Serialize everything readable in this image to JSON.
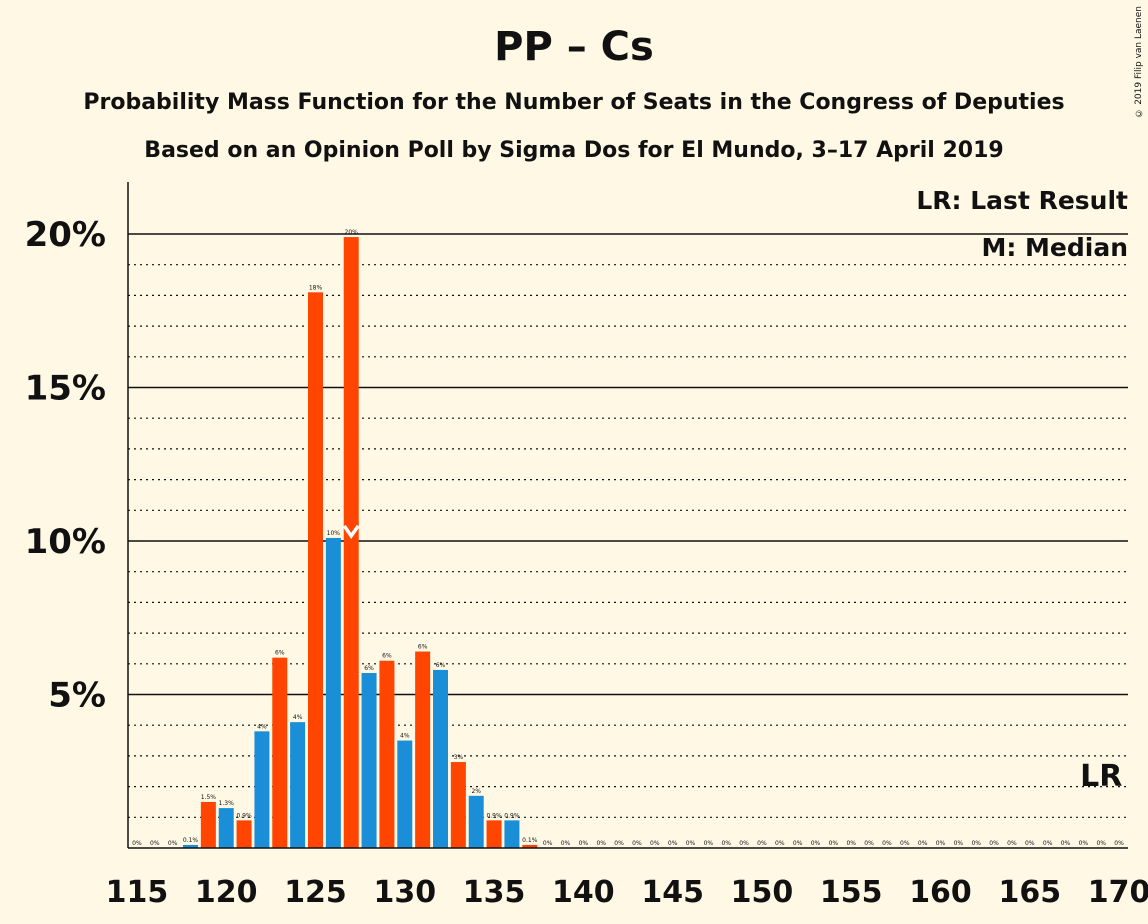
{
  "title": "PP – Cs",
  "subtitle": "Probability Mass Function for the Number of Seats in the Congress of Deputies",
  "subtitle2": "Based on an Opinion Poll by Sigma Dos for El Mundo, 3–17 April 2019",
  "copyright": "© 2019 Filip van Laenen",
  "legend": {
    "lr": "LR: Last Result",
    "m": "M: Median"
  },
  "colors": {
    "orange": "#FF4500",
    "blue": "#1A8FD8",
    "background": "#FFF8E4"
  },
  "chart_data": {
    "type": "bar",
    "xlabel": "",
    "ylabel": "",
    "ylim": [
      0,
      21.5
    ],
    "xlim": [
      115,
      170
    ],
    "y_ticks": [
      {
        "value": 5,
        "label": "5%"
      },
      {
        "value": 10,
        "label": "10%"
      },
      {
        "value": 15,
        "label": "15%"
      },
      {
        "value": 20,
        "label": "20%"
      }
    ],
    "x_ticks": [
      115,
      120,
      125,
      130,
      135,
      140,
      145,
      150,
      155,
      160,
      165,
      170
    ],
    "grid": "dotted every 1%, solid every 5%",
    "median_seat": 127,
    "last_result_seat": 169,
    "last_result_label": "LR",
    "seats": [
      {
        "x": 115,
        "value": 0,
        "label": "0%"
      },
      {
        "x": 116,
        "value": 0,
        "label": "0%"
      },
      {
        "x": 117,
        "value": 0,
        "label": "0%"
      },
      {
        "x": 118,
        "value": 0.1,
        "label": "0.1%"
      },
      {
        "x": 119,
        "value": 1.5,
        "label": "1.5%"
      },
      {
        "x": 120,
        "value": 1.3,
        "label": "1.3%"
      },
      {
        "x": 121,
        "value": 0.9,
        "label": "0.9%"
      },
      {
        "x": 122,
        "value": 3.8,
        "label": "4%"
      },
      {
        "x": 123,
        "value": 6.2,
        "label": "6%"
      },
      {
        "x": 124,
        "value": 4.1,
        "label": "4%"
      },
      {
        "x": 125,
        "value": 18.1,
        "label": "18%"
      },
      {
        "x": 126,
        "value": 10.1,
        "label": "10%"
      },
      {
        "x": 127,
        "value": 19.9,
        "label": "20%"
      },
      {
        "x": 128,
        "value": 5.7,
        "label": "6%"
      },
      {
        "x": 129,
        "value": 6.1,
        "label": "6%"
      },
      {
        "x": 130,
        "value": 3.5,
        "label": "4%"
      },
      {
        "x": 131,
        "value": 6.4,
        "label": "6%"
      },
      {
        "x": 132,
        "value": 5.8,
        "label": "6%"
      },
      {
        "x": 133,
        "value": 2.8,
        "label": "3%"
      },
      {
        "x": 134,
        "value": 1.7,
        "label": "2%"
      },
      {
        "x": 135,
        "value": 0.9,
        "label": "0.9%"
      },
      {
        "x": 136,
        "value": 0.9,
        "label": "0.9%"
      },
      {
        "x": 137,
        "value": 0.1,
        "label": "0.1%"
      },
      {
        "x": 138,
        "value": 0,
        "label": "0%"
      },
      {
        "x": 139,
        "value": 0,
        "label": "0%"
      },
      {
        "x": 140,
        "value": 0,
        "label": "0%"
      },
      {
        "x": 141,
        "value": 0,
        "label": "0%"
      },
      {
        "x": 142,
        "value": 0,
        "label": "0%"
      },
      {
        "x": 143,
        "value": 0,
        "label": "0%"
      },
      {
        "x": 144,
        "value": 0,
        "label": "0%"
      },
      {
        "x": 145,
        "value": 0,
        "label": "0%"
      },
      {
        "x": 146,
        "value": 0,
        "label": "0%"
      },
      {
        "x": 147,
        "value": 0,
        "label": "0%"
      },
      {
        "x": 148,
        "value": 0,
        "label": "0%"
      },
      {
        "x": 149,
        "value": 0,
        "label": "0%"
      },
      {
        "x": 150,
        "value": 0,
        "label": "0%"
      },
      {
        "x": 151,
        "value": 0,
        "label": "0%"
      },
      {
        "x": 152,
        "value": 0,
        "label": "0%"
      },
      {
        "x": 153,
        "value": 0,
        "label": "0%"
      },
      {
        "x": 154,
        "value": 0,
        "label": "0%"
      },
      {
        "x": 155,
        "value": 0,
        "label": "0%"
      },
      {
        "x": 156,
        "value": 0,
        "label": "0%"
      },
      {
        "x": 157,
        "value": 0,
        "label": "0%"
      },
      {
        "x": 158,
        "value": 0,
        "label": "0%"
      },
      {
        "x": 159,
        "value": 0,
        "label": "0%"
      },
      {
        "x": 160,
        "value": 0,
        "label": "0%"
      },
      {
        "x": 161,
        "value": 0,
        "label": "0%"
      },
      {
        "x": 162,
        "value": 0,
        "label": "0%"
      },
      {
        "x": 163,
        "value": 0,
        "label": "0%"
      },
      {
        "x": 164,
        "value": 0,
        "label": "0%"
      },
      {
        "x": 165,
        "value": 0,
        "label": "0%"
      },
      {
        "x": 166,
        "value": 0,
        "label": "0%"
      },
      {
        "x": 167,
        "value": 0,
        "label": "0%"
      },
      {
        "x": 168,
        "value": 0,
        "label": "0%"
      },
      {
        "x": 169,
        "value": 0,
        "label": "0%"
      },
      {
        "x": 170,
        "value": 0,
        "label": "0%"
      }
    ]
  }
}
